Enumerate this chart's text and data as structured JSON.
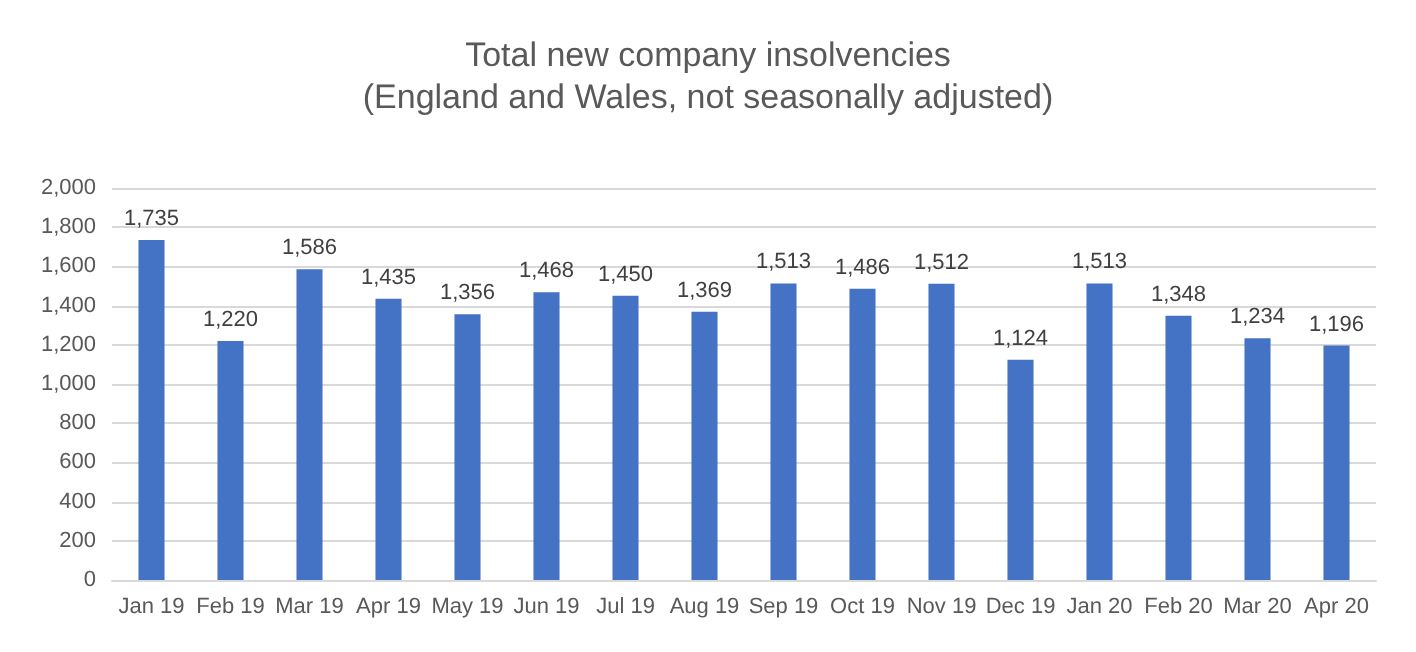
{
  "chart_data": {
    "type": "bar",
    "title": "Total new company insolvencies",
    "subtitle": "(England and Wales, not seasonally adjusted)",
    "categories": [
      "Jan 19",
      "Feb 19",
      "Mar 19",
      "Apr 19",
      "May 19",
      "Jun 19",
      "Jul 19",
      "Aug 19",
      "Sep 19",
      "Oct 19",
      "Nov 19",
      "Dec 19",
      "Jan 20",
      "Feb 20",
      "Mar 20",
      "Apr 20"
    ],
    "values": [
      1735,
      1220,
      1586,
      1435,
      1356,
      1468,
      1450,
      1369,
      1513,
      1486,
      1512,
      1124,
      1513,
      1348,
      1234,
      1196
    ],
    "value_labels": [
      "1,735",
      "1,220",
      "1,586",
      "1,435",
      "1,356",
      "1,468",
      "1,450",
      "1,369",
      "1,513",
      "1,486",
      "1,512",
      "1,124",
      "1,513",
      "1,348",
      "1,234",
      "1,196"
    ],
    "color": "#4472c4",
    "ylim": [
      0,
      2000
    ],
    "yticks": [
      0,
      200,
      400,
      600,
      800,
      {
        "value": 1000,
        "label": "1,000"
      },
      {
        "value": 1200,
        "label": "1,200"
      },
      {
        "value": 1400,
        "label": "1,400"
      },
      {
        "value": 1600,
        "label": "1,600"
      },
      {
        "value": 1800,
        "label": "1,800"
      },
      {
        "value": 2000,
        "label": "2,000"
      }
    ],
    "grid": "y"
  }
}
